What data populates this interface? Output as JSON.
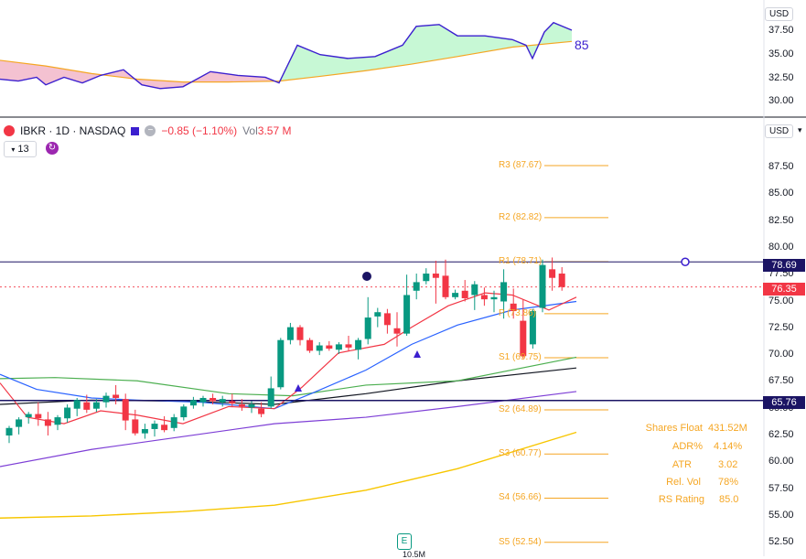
{
  "colors": {
    "up": "#089981",
    "down": "#f23645",
    "pivot": "#f5a623",
    "resistance_line": "#3b1fcf",
    "ema_red": "#f23645",
    "ema_blue": "#2962ff",
    "sma_green": "#4caf50",
    "sma_black": "#131722",
    "sma_purple": "#7e3fd6",
    "sma_yellow": "#f7c600"
  },
  "top_panel": {
    "currency": "USD",
    "ticks": [
      "37.50",
      "35.00",
      "32.50",
      "30.00"
    ],
    "rs_value": "85"
  },
  "legend": {
    "symbol": "IBKR · 1D · NASDAQ",
    "change": "−0.85 (−1.10%)",
    "vol_label": "Vol",
    "vol_value": "3.57 M",
    "period": "13"
  },
  "main_panel": {
    "currency": "USD",
    "ticks": [
      "87.50",
      "85.00",
      "82.50",
      "80.00",
      "77.50",
      "75.00",
      "72.50",
      "70.00",
      "67.50",
      "65.00",
      "62.50",
      "60.00",
      "57.50",
      "55.00",
      "52.50"
    ],
    "price_tags": {
      "resistance": "78.69",
      "last": "76.35",
      "support": "65.76"
    },
    "pivots": [
      {
        "label": "R3 (87.67)",
        "value": 87.67
      },
      {
        "label": "R2 (82.82)",
        "value": 82.82
      },
      {
        "label": "R1 (78.71)",
        "value": 78.71
      },
      {
        "label": "P (73.86)",
        "value": 73.86
      },
      {
        "label": "S1 (69.75)",
        "value": 69.75
      },
      {
        "label": "S2 (64.89)",
        "value": 64.89
      },
      {
        "label": "S3 (60.77)",
        "value": 60.77
      },
      {
        "label": "S4 (56.66)",
        "value": 56.66
      },
      {
        "label": "S5 (52.54)",
        "value": 52.54
      }
    ],
    "stats": [
      {
        "label": "Shares Float",
        "value": "431.52M"
      },
      {
        "label": "ADR%",
        "value": "4.14%"
      },
      {
        "label": "ATR",
        "value": "3.02"
      },
      {
        "label": "Rel. Vol",
        "value": "78%"
      },
      {
        "label": "RS Rating",
        "value": "85.0"
      }
    ],
    "earnings_badge": "E",
    "bottom_label": "10.5M"
  },
  "chart_data": {
    "type": "candlestick",
    "ylim": [
      52.3,
      89.5
    ],
    "candles": [
      {
        "o": 62.5,
        "h": 63.4,
        "l": 61.8,
        "c": 63.2
      },
      {
        "o": 63.3,
        "h": 64.2,
        "l": 62.6,
        "c": 64.0
      },
      {
        "o": 64.2,
        "h": 64.7,
        "l": 63.6,
        "c": 64.5
      },
      {
        "o": 64.5,
        "h": 65.6,
        "l": 63.4,
        "c": 64.1
      },
      {
        "o": 64.0,
        "h": 64.7,
        "l": 62.5,
        "c": 63.4
      },
      {
        "o": 63.5,
        "h": 64.4,
        "l": 63.0,
        "c": 64.2
      },
      {
        "o": 64.1,
        "h": 65.4,
        "l": 63.7,
        "c": 65.1
      },
      {
        "o": 65.0,
        "h": 66.0,
        "l": 64.3,
        "c": 65.8
      },
      {
        "o": 65.6,
        "h": 66.3,
        "l": 64.6,
        "c": 64.9
      },
      {
        "o": 65.0,
        "h": 65.9,
        "l": 64.7,
        "c": 65.6
      },
      {
        "o": 65.6,
        "h": 66.5,
        "l": 65.1,
        "c": 66.2
      },
      {
        "o": 66.3,
        "h": 67.2,
        "l": 65.4,
        "c": 66.0
      },
      {
        "o": 65.9,
        "h": 66.4,
        "l": 63.0,
        "c": 63.9
      },
      {
        "o": 64.0,
        "h": 64.9,
        "l": 62.5,
        "c": 62.7
      },
      {
        "o": 62.7,
        "h": 63.6,
        "l": 62.2,
        "c": 63.1
      },
      {
        "o": 63.1,
        "h": 63.9,
        "l": 62.4,
        "c": 63.6
      },
      {
        "o": 63.5,
        "h": 64.3,
        "l": 62.8,
        "c": 63.0
      },
      {
        "o": 63.2,
        "h": 64.5,
        "l": 62.9,
        "c": 64.2
      },
      {
        "o": 64.2,
        "h": 65.4,
        "l": 63.9,
        "c": 65.2
      },
      {
        "o": 65.3,
        "h": 66.1,
        "l": 65.0,
        "c": 65.8
      },
      {
        "o": 65.6,
        "h": 66.2,
        "l": 65.2,
        "c": 66.0
      },
      {
        "o": 66.0,
        "h": 66.4,
        "l": 65.4,
        "c": 65.7
      },
      {
        "o": 65.6,
        "h": 66.2,
        "l": 65.2,
        "c": 65.9
      },
      {
        "o": 65.7,
        "h": 66.4,
        "l": 65.2,
        "c": 65.5
      },
      {
        "o": 65.4,
        "h": 65.9,
        "l": 64.8,
        "c": 65.2
      },
      {
        "o": 65.1,
        "h": 65.7,
        "l": 64.6,
        "c": 65.4
      },
      {
        "o": 65.0,
        "h": 65.6,
        "l": 64.2,
        "c": 64.5
      },
      {
        "o": 65.2,
        "h": 68.0,
        "l": 65.0,
        "c": 66.9
      },
      {
        "o": 67.0,
        "h": 71.6,
        "l": 66.8,
        "c": 71.4
      },
      {
        "o": 71.4,
        "h": 73.0,
        "l": 71.0,
        "c": 72.6
      },
      {
        "o": 72.6,
        "h": 72.8,
        "l": 70.9,
        "c": 71.4
      },
      {
        "o": 71.4,
        "h": 71.6,
        "l": 70.2,
        "c": 70.4
      },
      {
        "o": 70.4,
        "h": 71.2,
        "l": 70.0,
        "c": 70.9
      },
      {
        "o": 70.9,
        "h": 71.3,
        "l": 70.4,
        "c": 70.6
      },
      {
        "o": 70.5,
        "h": 71.2,
        "l": 70.1,
        "c": 71.0
      },
      {
        "o": 71.0,
        "h": 71.8,
        "l": 70.4,
        "c": 70.7
      },
      {
        "o": 70.5,
        "h": 71.6,
        "l": 69.6,
        "c": 71.4
      },
      {
        "o": 71.5,
        "h": 75.4,
        "l": 71.0,
        "c": 73.5
      },
      {
        "o": 73.6,
        "h": 74.4,
        "l": 72.6,
        "c": 74.0
      },
      {
        "o": 73.9,
        "h": 74.3,
        "l": 72.0,
        "c": 72.8
      },
      {
        "o": 72.5,
        "h": 74.0,
        "l": 70.8,
        "c": 72.0
      },
      {
        "o": 72.0,
        "h": 77.5,
        "l": 71.8,
        "c": 75.6
      },
      {
        "o": 76.0,
        "h": 77.6,
        "l": 75.2,
        "c": 76.8
      },
      {
        "o": 76.9,
        "h": 78.1,
        "l": 76.6,
        "c": 77.6
      },
      {
        "o": 77.6,
        "h": 78.8,
        "l": 74.8,
        "c": 77.2
      },
      {
        "o": 77.4,
        "h": 78.9,
        "l": 75.2,
        "c": 75.4
      },
      {
        "o": 75.4,
        "h": 76.1,
        "l": 75.2,
        "c": 75.8
      },
      {
        "o": 76.0,
        "h": 77.0,
        "l": 75.0,
        "c": 75.3
      },
      {
        "o": 75.6,
        "h": 76.9,
        "l": 74.2,
        "c": 76.6
      },
      {
        "o": 75.6,
        "h": 76.3,
        "l": 74.6,
        "c": 75.2
      },
      {
        "o": 75.2,
        "h": 76.0,
        "l": 74.0,
        "c": 75.4
      },
      {
        "o": 75.0,
        "h": 78.0,
        "l": 73.4,
        "c": 76.8
      },
      {
        "o": 74.8,
        "h": 76.2,
        "l": 73.4,
        "c": 74.1
      },
      {
        "o": 73.2,
        "h": 75.2,
        "l": 69.7,
        "c": 69.9
      },
      {
        "o": 71.0,
        "h": 74.3,
        "l": 70.6,
        "c": 74.1
      },
      {
        "o": 74.4,
        "h": 78.9,
        "l": 74.0,
        "c": 78.4
      },
      {
        "o": 78.0,
        "h": 79.1,
        "l": 76.0,
        "c": 77.2
      },
      {
        "o": 77.6,
        "h": 78.2,
        "l": 76.0,
        "c": 76.35
      }
    ]
  }
}
